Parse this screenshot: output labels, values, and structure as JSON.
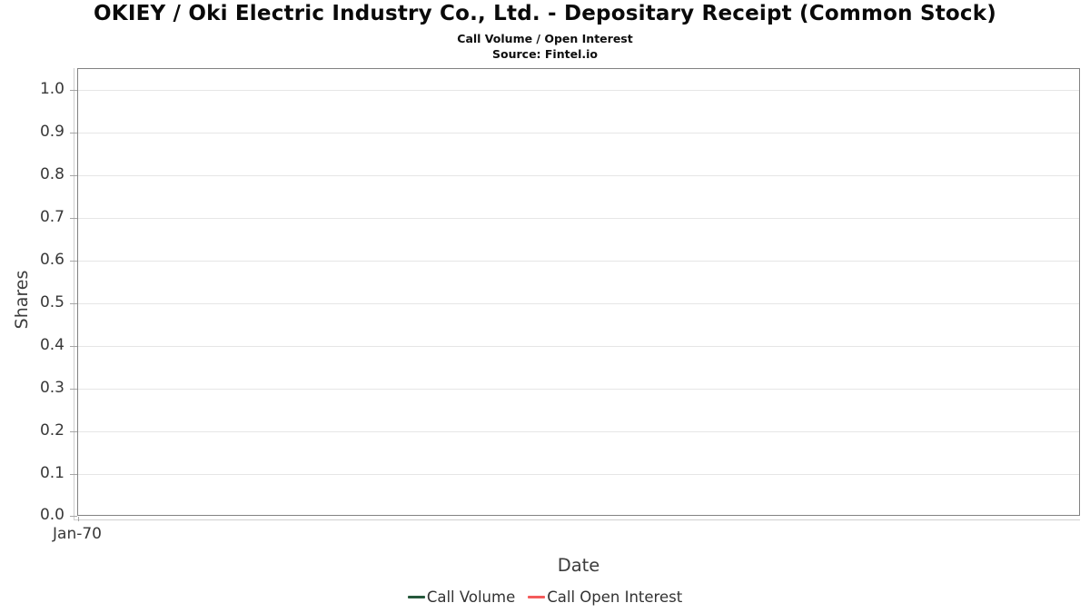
{
  "header": {
    "title": "OKIEY / Oki Electric Industry Co., Ltd. - Depositary Receipt (Common Stock)",
    "subtitle": "Call Volume / Open Interest",
    "source": "Source: Fintel.io"
  },
  "chart_data": {
    "type": "line",
    "title": "OKIEY / Oki Electric Industry Co., Ltd. - Depositary Receipt (Common Stock)",
    "subtitle": "Call Volume / Open Interest",
    "source": "Source: Fintel.io",
    "xlabel": "Date",
    "ylabel": "Shares",
    "x_ticks": [
      "Jan-70"
    ],
    "y_ticks": [
      "1.0",
      "0.9",
      "0.8",
      "0.7",
      "0.6",
      "0.5",
      "0.4",
      "0.3",
      "0.2",
      "0.1",
      "0.0"
    ],
    "ylim": [
      0.0,
      1.05
    ],
    "grid": true,
    "legend_position": "bottom",
    "series": [
      {
        "name": "Call Volume",
        "color": "#26593c",
        "x": [],
        "values": []
      },
      {
        "name": "Call Open Interest",
        "color": "#f45b5b",
        "x": [],
        "values": []
      }
    ]
  }
}
